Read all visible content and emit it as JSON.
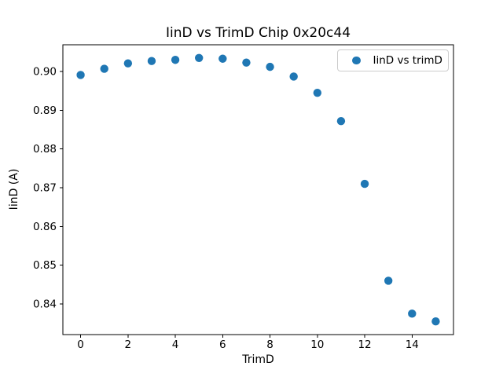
{
  "figure": {
    "background": "#ffffff"
  },
  "chart_data": {
    "type": "scatter",
    "title": "IinD vs TrimD Chip 0x20c44",
    "xlabel": "TrimD",
    "ylabel": "IinD (A)",
    "legend": {
      "label": "IinD vs trimD",
      "position": "upper right",
      "marker": "circle-icon"
    },
    "series": [
      {
        "name": "IinD vs trimD",
        "marker_color": "#1f77b4",
        "x": [
          0,
          1,
          2,
          3,
          4,
          5,
          6,
          7,
          8,
          9,
          10,
          11,
          12,
          13,
          14,
          15
        ],
        "y": [
          0.8991,
          0.9007,
          0.9021,
          0.9027,
          0.903,
          0.9035,
          0.9033,
          0.9023,
          0.9012,
          0.8987,
          0.8945,
          0.8872,
          0.871,
          0.846,
          0.8375,
          0.8355
        ]
      }
    ],
    "xlim": [
      -0.75,
      15.75
    ],
    "ylim": [
      0.8321,
      0.9069
    ],
    "xticks": [
      0,
      2,
      4,
      6,
      8,
      10,
      12,
      14
    ],
    "yticks": [
      0.84,
      0.85,
      0.86,
      0.87,
      0.88,
      0.89,
      0.9
    ],
    "ytick_format_decimals": 2,
    "grid": false,
    "axes_color": "#000000"
  }
}
